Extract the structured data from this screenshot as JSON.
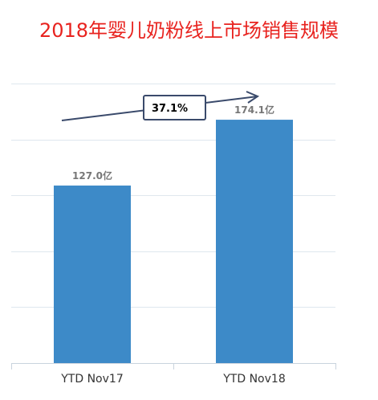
{
  "chart_data": {
    "type": "bar",
    "title": "2018年婴儿奶粉线上市场销售规模",
    "categories": [
      "YTD Nov17",
      "YTD Nov18"
    ],
    "values": [
      127.0,
      174.1
    ],
    "value_labels": [
      "127.0亿",
      "174.1亿"
    ],
    "unit": "亿",
    "ylim": [
      0,
      200
    ],
    "ygrid_step": 40,
    "grid": true,
    "legend": "none",
    "xlabel": "",
    "ylabel": "",
    "annotation": {
      "text": "37.1%"
    },
    "colors": {
      "title": "#e8231f",
      "bar": "#3d8ac8",
      "grid": "#dfe7ee",
      "axis": "#c9d3dd",
      "annotation_border": "#3a4a6b"
    }
  }
}
